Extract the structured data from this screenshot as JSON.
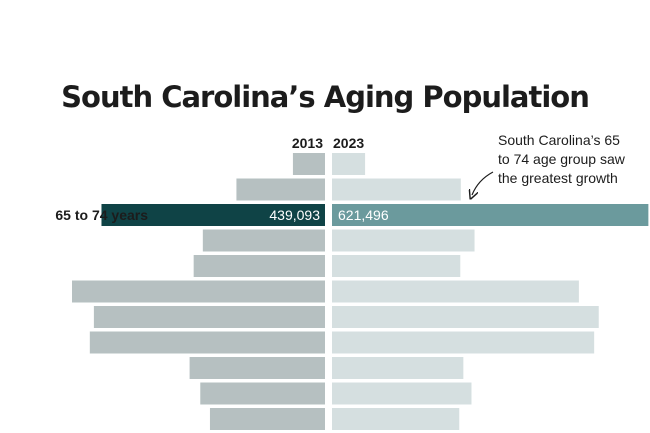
{
  "title": "South Carolina’s Aging Population",
  "colors": {
    "left_bar": "#b6c0c1",
    "right_bar": "#d5dfe0",
    "highlight_left": "#0f4346",
    "highlight_right": "#6b9a9d",
    "text": "#1c1c1c"
  },
  "chart_data": {
    "type": "bar",
    "orientation": "horizontal-butterfly",
    "title": "South Carolina’s Aging Population",
    "series": [
      {
        "name": "2013",
        "values": [
          63000,
          174000,
          439093,
          240000,
          258000,
          497000,
          454000,
          462000,
          266000,
          245000,
          226000
        ]
      },
      {
        "name": "2023",
        "values": [
          65000,
          253000,
          621496,
          280000,
          252000,
          485000,
          524000,
          515000,
          258000,
          274000,
          250000
        ]
      }
    ],
    "highlight_index": 2,
    "highlight_label": "65 to 74 years",
    "data_labels": {
      "left": "439,093",
      "right": "621,496"
    },
    "annotation": [
      "South Carolina’s 65",
      "to 74 age group saw",
      "the greatest growth"
    ],
    "grid": false
  }
}
